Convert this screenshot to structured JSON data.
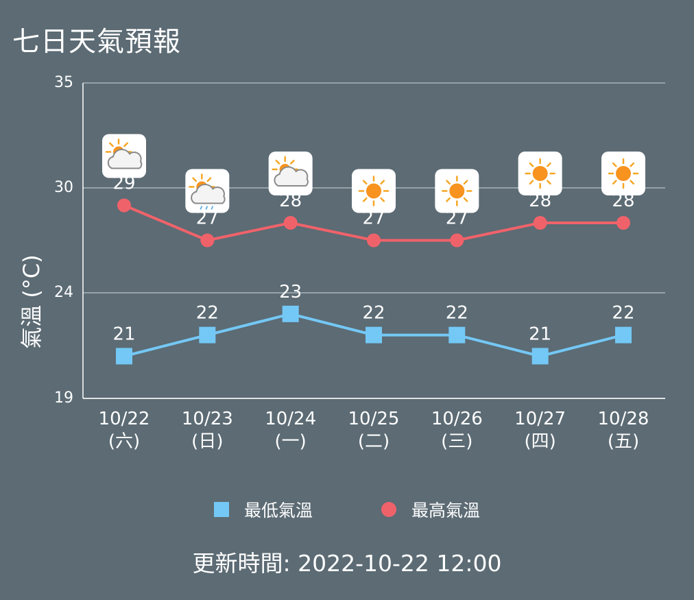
{
  "title": "七日天氣預報",
  "legend": {
    "low_label": "最低氣溫",
    "high_label": "最高氣溫"
  },
  "footer": {
    "label": "更新時間:",
    "value": "2022-10-22 12:00"
  },
  "colors": {
    "background": "#5c6b74",
    "low": "#74c8f5",
    "high": "#f0626a",
    "grid": "#a9b4ba"
  },
  "chart_data": {
    "type": "line",
    "ylabel": "氣溫 (°C)",
    "ylim": [
      19,
      35
    ],
    "yticks": [
      19,
      24,
      30,
      35
    ],
    "grid": true,
    "legend_position": "bottom",
    "categories": [
      {
        "date": "10/22",
        "weekday": "(六)",
        "icon": "partly-cloudy-icon"
      },
      {
        "date": "10/23",
        "weekday": "(日)",
        "icon": "partly-cloudy-rain-icon"
      },
      {
        "date": "10/24",
        "weekday": "(一)",
        "icon": "partly-cloudy-icon"
      },
      {
        "date": "10/25",
        "weekday": "(二)",
        "icon": "sunny-icon"
      },
      {
        "date": "10/26",
        "weekday": "(三)",
        "icon": "sunny-icon"
      },
      {
        "date": "10/27",
        "weekday": "(四)",
        "icon": "sunny-icon"
      },
      {
        "date": "10/28",
        "weekday": "(五)",
        "icon": "sunny-icon"
      }
    ],
    "series": [
      {
        "name": "最低氣溫",
        "values": [
          21,
          22,
          23,
          22,
          22,
          21,
          22
        ]
      },
      {
        "name": "最高氣溫",
        "values": [
          29,
          27,
          28,
          27,
          27,
          28,
          28
        ]
      }
    ]
  }
}
